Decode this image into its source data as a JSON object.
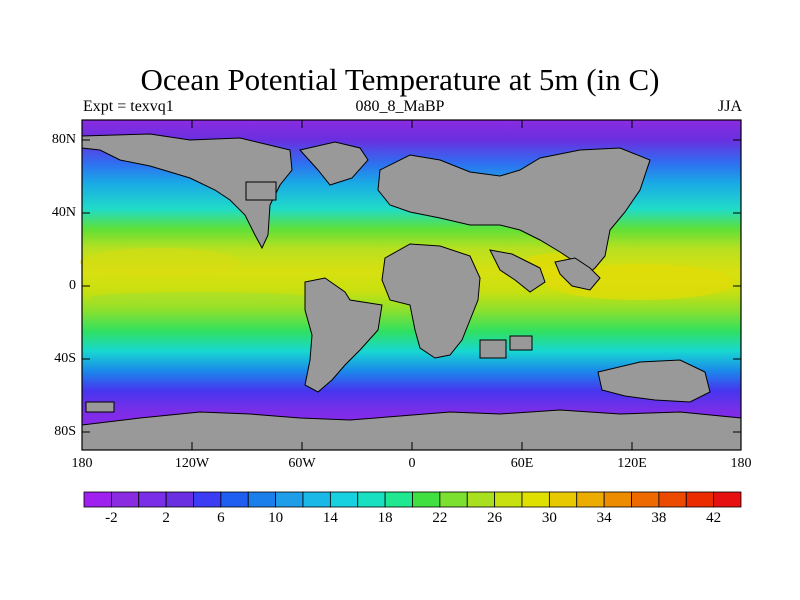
{
  "title": "Ocean Potential Temperature at 5m (in C)",
  "subtitle_left": "Expt = texvq1",
  "subtitle_center": "080_8_MaBP",
  "subtitle_right": "JJA",
  "lat_labels": [
    "80N",
    "40N",
    "0",
    "40S",
    "80S"
  ],
  "lon_labels": [
    "180",
    "120W",
    "60W",
    "0",
    "60E",
    "120E",
    "180"
  ],
  "colorbar": {
    "labels": [
      "-2",
      "2",
      "6",
      "10",
      "14",
      "18",
      "22",
      "26",
      "30",
      "34",
      "38",
      "42"
    ],
    "colors": [
      "#a020f0",
      "#8a2be2",
      "#7b2ee8",
      "#6a2fe0",
      "#3c3cf5",
      "#1e5ef0",
      "#1a7fea",
      "#1e9ee8",
      "#19b8e6",
      "#17d0e0",
      "#18e0c0",
      "#1fe890",
      "#40e040",
      "#7ce030",
      "#a8e020",
      "#c8e010",
      "#e0e000",
      "#e8c800",
      "#ecac00",
      "#ee8c00",
      "#ee6a00",
      "#ec4a00",
      "#ea2c00",
      "#e61010"
    ]
  },
  "land_color": "#999999"
}
